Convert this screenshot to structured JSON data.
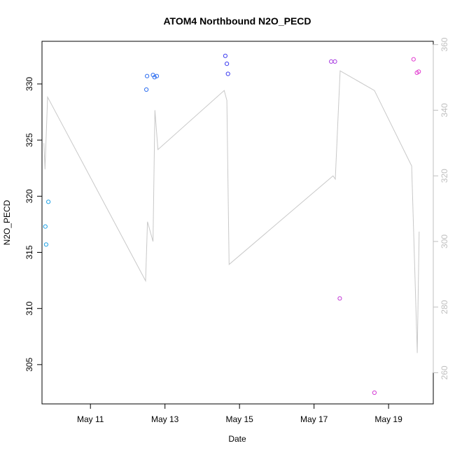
{
  "chart_data": {
    "type": "scatter",
    "title": "ATOM4 Northbound N2O_PECD",
    "xlabel": "Date",
    "ylabel": "N2O_PECD",
    "x_ticks": [
      "May 11",
      "May 13",
      "May 15",
      "May 17",
      "May 19"
    ],
    "x_tick_values": [
      11,
      13,
      15,
      17,
      19
    ],
    "xlim": [
      9.7,
      20.2
    ],
    "ylim": [
      301.5,
      333.8
    ],
    "y_ticks": [
      305,
      310,
      315,
      320,
      325,
      330
    ],
    "y2lim": [
      250.5,
      361
    ],
    "y2_ticks": [
      260,
      280,
      300,
      320,
      340,
      360
    ],
    "grid": false,
    "legend": "none",
    "colors": {
      "line": "#c8c8c8",
      "axis": "#000000",
      "right_axis": "#bfbfbf"
    },
    "points": [
      {
        "x": 9.79,
        "y": 317.3,
        "color": "#1fa2e6"
      },
      {
        "x": 9.81,
        "y": 315.7,
        "color": "#1fa2e6"
      },
      {
        "x": 9.87,
        "y": 319.5,
        "color": "#1fa2e6"
      },
      {
        "x": 12.5,
        "y": 329.5,
        "color": "#2f6ff0"
      },
      {
        "x": 12.52,
        "y": 330.7,
        "color": "#2f6ff0"
      },
      {
        "x": 12.68,
        "y": 330.8,
        "color": "#2f6ff0"
      },
      {
        "x": 12.72,
        "y": 330.6,
        "color": "#2f6ff0"
      },
      {
        "x": 12.78,
        "y": 330.7,
        "color": "#2f6ff0"
      },
      {
        "x": 14.62,
        "y": 332.5,
        "color": "#3d3df0"
      },
      {
        "x": 14.66,
        "y": 331.8,
        "color": "#3d3df0"
      },
      {
        "x": 14.69,
        "y": 330.9,
        "color": "#3d3df0"
      },
      {
        "x": 17.46,
        "y": 332.0,
        "color": "#a83de0"
      },
      {
        "x": 17.56,
        "y": 332.0,
        "color": "#a83de0"
      },
      {
        "x": 17.69,
        "y": 310.9,
        "color": "#c43dd8"
      },
      {
        "x": 18.62,
        "y": 302.5,
        "color": "#d43cd6"
      },
      {
        "x": 19.67,
        "y": 332.2,
        "color": "#e23cd0"
      },
      {
        "x": 19.76,
        "y": 331.0,
        "color": "#e23cd0"
      },
      {
        "x": 19.81,
        "y": 331.1,
        "color": "#e23cd0"
      }
    ],
    "line": {
      "axis": "right",
      "x": [
        9.75,
        9.78,
        9.85,
        12.48,
        12.53,
        12.68,
        12.73,
        12.81,
        14.59,
        14.66,
        14.72,
        17.51,
        17.57,
        17.7,
        18.62,
        19.62,
        19.77,
        19.82
      ],
      "y": [
        330,
        322,
        344,
        288,
        306,
        300,
        340,
        328,
        346,
        343,
        293,
        320,
        319,
        352,
        346,
        323,
        266,
        303
      ]
    }
  }
}
